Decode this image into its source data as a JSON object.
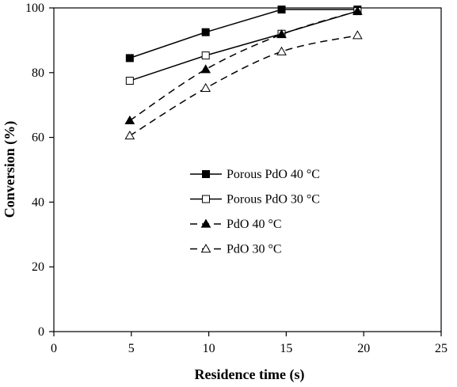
{
  "chart_data": {
    "type": "line",
    "xlabel": "Residence time (s)",
    "ylabel": "Conversion (%)",
    "xlim": [
      0,
      25
    ],
    "ylim": [
      0,
      100
    ],
    "x_ticks": [
      0,
      5,
      10,
      15,
      20,
      25
    ],
    "y_ticks": [
      0,
      20,
      40,
      60,
      80,
      100
    ],
    "grid": false,
    "legend_position": "center",
    "series": [
      {
        "name": "Porous PdO 40 °C",
        "x": [
          4.9,
          9.8,
          14.7,
          19.6
        ],
        "y": [
          84.5,
          92.5,
          99.5,
          99.5
        ],
        "marker": "square-filled",
        "line": "solid"
      },
      {
        "name": "Porous PdO 30 °C",
        "x": [
          4.9,
          9.8,
          14.7,
          19.6
        ],
        "y": [
          77.5,
          85.3,
          92.0,
          99.0
        ],
        "marker": "square-open",
        "line": "solid"
      },
      {
        "name": "PdO 40 °C",
        "x": [
          4.9,
          9.8,
          14.7,
          19.6
        ],
        "y": [
          65.2,
          81.0,
          91.8,
          99.0
        ],
        "marker": "triangle-filled",
        "line": "dashed"
      },
      {
        "name": "PdO 30 °C",
        "x": [
          4.9,
          9.8,
          14.7,
          19.6
        ],
        "y": [
          60.5,
          75.2,
          86.5,
          91.5
        ],
        "marker": "triangle-open",
        "line": "dashed"
      }
    ]
  }
}
